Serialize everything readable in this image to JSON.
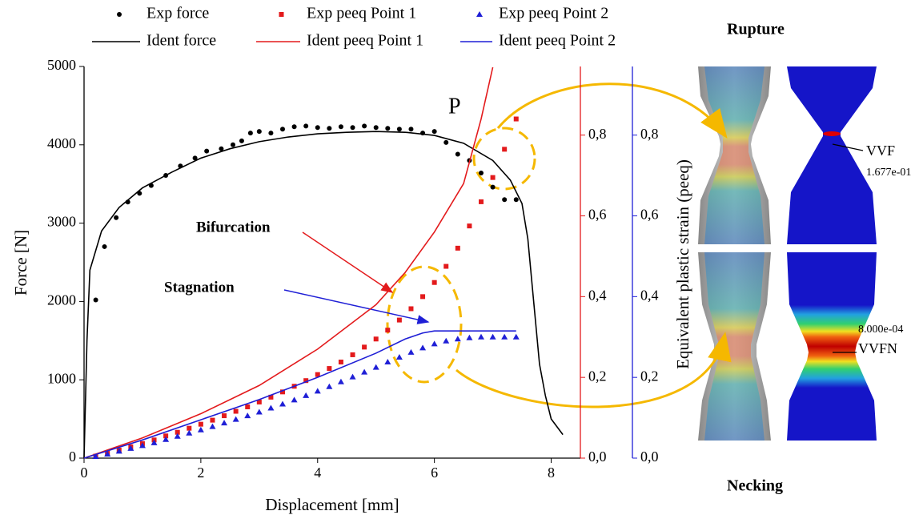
{
  "chart_data": {
    "type": "scatter-line",
    "x_label": "Displacement [mm]",
    "y_label": "Force [N]",
    "y3_label": "Equivalent plastic strain (peeq)",
    "xlim": [
      0,
      8.5
    ],
    "xticks": [
      0,
      2,
      4,
      6,
      8
    ],
    "ylim": [
      0,
      5000
    ],
    "yticks": [
      0,
      1000,
      2000,
      3000,
      4000,
      5000
    ],
    "y2lim": [
      0,
      0.97
    ],
    "y2ticks": [
      {
        "value": 0,
        "label": "0,0"
      },
      {
        "value": 0.2,
        "label": "0,2"
      },
      {
        "value": 0.4,
        "label": "0,4"
      },
      {
        "value": 0.6,
        "label": "0,6"
      },
      {
        "value": 0.8,
        "label": "0,8"
      }
    ],
    "y3lim": [
      0,
      0.97
    ],
    "y3ticks": [
      {
        "value": 0,
        "label": "0,0"
      },
      {
        "value": 0.2,
        "label": "0,2"
      },
      {
        "value": 0.4,
        "label": "0,4"
      },
      {
        "value": 0.6,
        "label": "0,6"
      },
      {
        "value": 0.8,
        "label": "0,8"
      }
    ],
    "y2_color": "#e31a1c",
    "y3_color": "#1f1fd6",
    "series": [
      {
        "name": "Exp force",
        "color": "#000000",
        "marker": "circle",
        "axis": "y",
        "x": [
          0.2,
          0.35,
          0.55,
          0.75,
          0.95,
          1.15,
          1.4,
          1.65,
          1.9,
          2.1,
          2.35,
          2.55,
          2.7,
          2.85,
          3.0,
          3.2,
          3.4,
          3.6,
          3.8,
          4.0,
          4.2,
          4.4,
          4.6,
          4.8,
          5.0,
          5.2,
          5.4,
          5.6,
          5.8,
          6.0,
          6.2,
          6.4,
          6.6,
          6.8,
          7.0,
          7.2,
          7.4
        ],
        "values": [
          2020,
          2700,
          3070,
          3270,
          3380,
          3480,
          3610,
          3730,
          3830,
          3920,
          3950,
          4000,
          4050,
          4150,
          4170,
          4150,
          4200,
          4230,
          4240,
          4220,
          4210,
          4230,
          4220,
          4240,
          4220,
          4210,
          4200,
          4200,
          4150,
          4170,
          4030,
          3880,
          3800,
          3640,
          3460,
          3300,
          3300
        ]
      },
      {
        "name": "Exp peeq Point 1",
        "color": "#e31a1c",
        "marker": "square",
        "axis": "y2",
        "x": [
          0.2,
          0.4,
          0.6,
          0.8,
          1.0,
          1.2,
          1.4,
          1.6,
          1.8,
          2.0,
          2.2,
          2.4,
          2.6,
          2.8,
          3.0,
          3.2,
          3.4,
          3.6,
          3.8,
          4.0,
          4.2,
          4.4,
          4.6,
          4.8,
          5.0,
          5.2,
          5.4,
          5.6,
          5.8,
          6.0,
          6.2,
          6.4,
          6.6,
          6.8,
          7.0,
          7.2,
          7.4
        ],
        "values": [
          0.005,
          0.012,
          0.02,
          0.028,
          0.036,
          0.045,
          0.055,
          0.064,
          0.074,
          0.084,
          0.094,
          0.105,
          0.116,
          0.127,
          0.139,
          0.151,
          0.164,
          0.178,
          0.192,
          0.207,
          0.222,
          0.238,
          0.256,
          0.275,
          0.295,
          0.317,
          0.342,
          0.37,
          0.4,
          0.435,
          0.475,
          0.52,
          0.575,
          0.635,
          0.695,
          0.765,
          0.84
        ]
      },
      {
        "name": "Exp peeq Point 2",
        "color": "#1f1fd6",
        "marker": "triangle",
        "axis": "y3",
        "x": [
          0.2,
          0.4,
          0.6,
          0.8,
          1.0,
          1.2,
          1.4,
          1.6,
          1.8,
          2.0,
          2.2,
          2.4,
          2.6,
          2.8,
          3.0,
          3.2,
          3.4,
          3.6,
          3.8,
          4.0,
          4.2,
          4.4,
          4.6,
          4.8,
          5.0,
          5.2,
          5.4,
          5.6,
          5.8,
          6.0,
          6.2,
          6.4,
          6.6,
          6.8,
          7.0,
          7.2,
          7.4
        ],
        "values": [
          0.004,
          0.01,
          0.017,
          0.024,
          0.031,
          0.038,
          0.046,
          0.054,
          0.062,
          0.07,
          0.078,
          0.087,
          0.096,
          0.105,
          0.114,
          0.124,
          0.134,
          0.144,
          0.155,
          0.166,
          0.177,
          0.189,
          0.201,
          0.213,
          0.225,
          0.238,
          0.25,
          0.262,
          0.273,
          0.283,
          0.29,
          0.295,
          0.298,
          0.3,
          0.3,
          0.3,
          0.3
        ]
      },
      {
        "name": "Ident force",
        "color": "#000000",
        "marker": "line",
        "axis": "y",
        "x": [
          0,
          0.05,
          0.1,
          0.3,
          0.6,
          1,
          1.5,
          2,
          2.5,
          3,
          3.5,
          4,
          4.5,
          5,
          5.5,
          6,
          6.5,
          7,
          7.3,
          7.5,
          7.6,
          7.7,
          7.8,
          7.9,
          8.0,
          8.2
        ],
        "values": [
          0,
          1500,
          2400,
          2900,
          3200,
          3450,
          3650,
          3830,
          3950,
          4040,
          4100,
          4140,
          4160,
          4170,
          4160,
          4120,
          4020,
          3800,
          3550,
          3250,
          2800,
          2000,
          1200,
          800,
          500,
          300
        ]
      },
      {
        "name": "Ident peeq Point 1",
        "color": "#e31a1c",
        "marker": "line",
        "axis": "y2",
        "x": [
          0,
          1,
          2,
          3,
          4,
          5,
          5.5,
          6,
          6.5,
          6.8,
          7.0
        ],
        "values": [
          0,
          0.05,
          0.11,
          0.18,
          0.27,
          0.38,
          0.46,
          0.56,
          0.68,
          0.84,
          0.968
        ]
      },
      {
        "name": "Ident peeq Point 2",
        "color": "#1f1fd6",
        "marker": "line",
        "axis": "y3",
        "x": [
          0,
          1,
          2,
          3,
          4,
          5,
          5.5,
          5.8,
          6.0,
          7.4
        ],
        "values": [
          0,
          0.045,
          0.095,
          0.145,
          0.2,
          0.26,
          0.295,
          0.31,
          0.315,
          0.315
        ]
      }
    ],
    "annotations": [
      {
        "text": "P"
      },
      {
        "text": "Bifurcation"
      },
      {
        "text": "Stagnation"
      },
      {
        "text": "Rupture"
      },
      {
        "text": "Necking"
      },
      {
        "text": "VVF"
      },
      {
        "text": "1.677e-01"
      },
      {
        "text": "8.000e-04"
      },
      {
        "text": "VVFN"
      }
    ]
  }
}
